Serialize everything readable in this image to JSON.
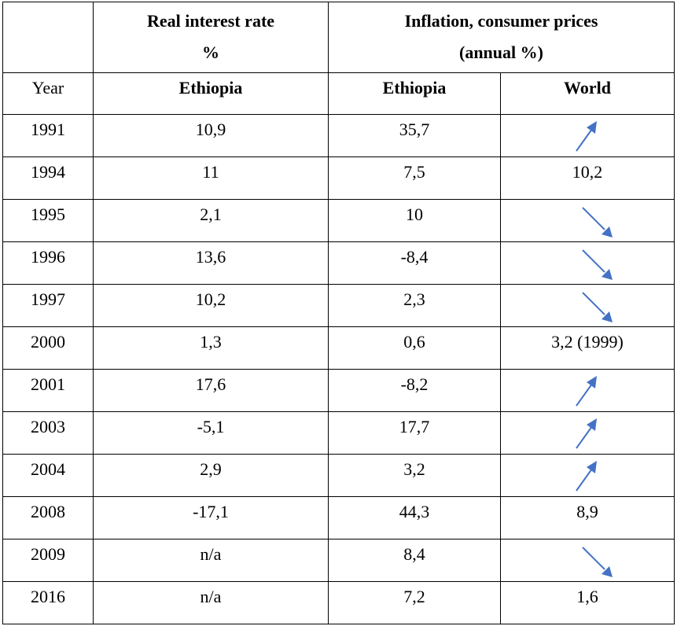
{
  "table": {
    "groups": [
      [
        "Real interest rate",
        "%"
      ],
      [
        "Inflation, consumer prices",
        "(annual %)"
      ]
    ],
    "subheader": [
      "Year",
      "Ethiopia",
      "Ethiopia",
      "World"
    ],
    "rows": [
      [
        "1991",
        "10,9",
        "35,7"
      ],
      [
        "1994",
        "11",
        "7,5",
        "10,2"
      ],
      [
        "1995",
        "2,1",
        "10"
      ],
      [
        "1996",
        "13,6",
        "-8,4"
      ],
      [
        "1997",
        "10,2",
        "2,3"
      ],
      [
        "2000",
        "1,3",
        "0,6",
        "3,2 (1999)"
      ],
      [
        "2001",
        "17,6",
        "-8,2"
      ],
      [
        "2003",
        "-5,1",
        "17,7"
      ],
      [
        "2004",
        "2,9",
        "3,2"
      ],
      [
        "2008",
        "-17,1",
        "44,3",
        "8,9"
      ],
      [
        "2009",
        "n/a",
        "8,4"
      ],
      [
        "2016",
        "n/a",
        "7,2",
        "1,6"
      ]
    ]
  }
}
